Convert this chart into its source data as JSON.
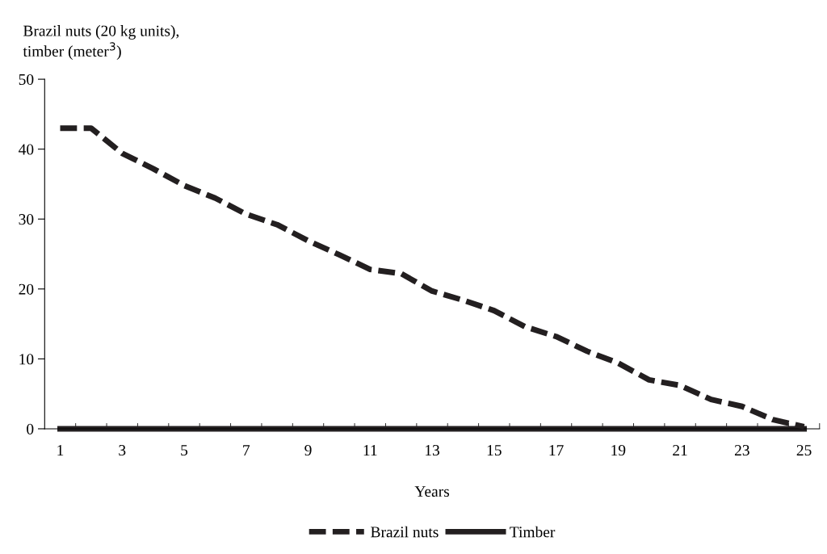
{
  "chart_data": {
    "type": "line",
    "xlabel": "Years",
    "ylabel": "Brazil nuts (20 kg units),\ntimber (meter$^{3}$)",
    "categories": [
      "1",
      null,
      "3",
      null,
      "5",
      null,
      "7",
      null,
      "9",
      null,
      "11",
      null,
      "13",
      null,
      "15",
      null,
      "17",
      null,
      "19",
      null,
      "21",
      null,
      "23",
      null,
      "25"
    ],
    "series": [
      {
        "name": "Brazil nuts",
        "color": "#231f20",
        "line_style": "dashed",
        "values": [
          43,
          43,
          39.4,
          37.2,
          34.8,
          33,
          30.7,
          29.2,
          26.9,
          24.9,
          22.8,
          22.2,
          19.7,
          18.4,
          16.9,
          14.6,
          13.2,
          11.1,
          9.4,
          7,
          6.2,
          4.2,
          3.2,
          1.3,
          0.3
        ]
      },
      {
        "name": "Timber",
        "color": "#231f20",
        "line_style": "solid",
        "values": [
          0,
          0,
          0,
          0,
          0,
          0,
          0,
          0,
          0,
          0,
          0,
          0,
          0,
          0,
          0,
          0,
          0,
          0,
          0,
          0,
          0,
          0,
          0,
          0,
          0
        ]
      }
    ],
    "ylim": [
      0,
      50
    ],
    "yticks": [
      0,
      10,
      20,
      30,
      40,
      50
    ],
    "grid": false,
    "legend": "bottom",
    "marker": "none"
  }
}
